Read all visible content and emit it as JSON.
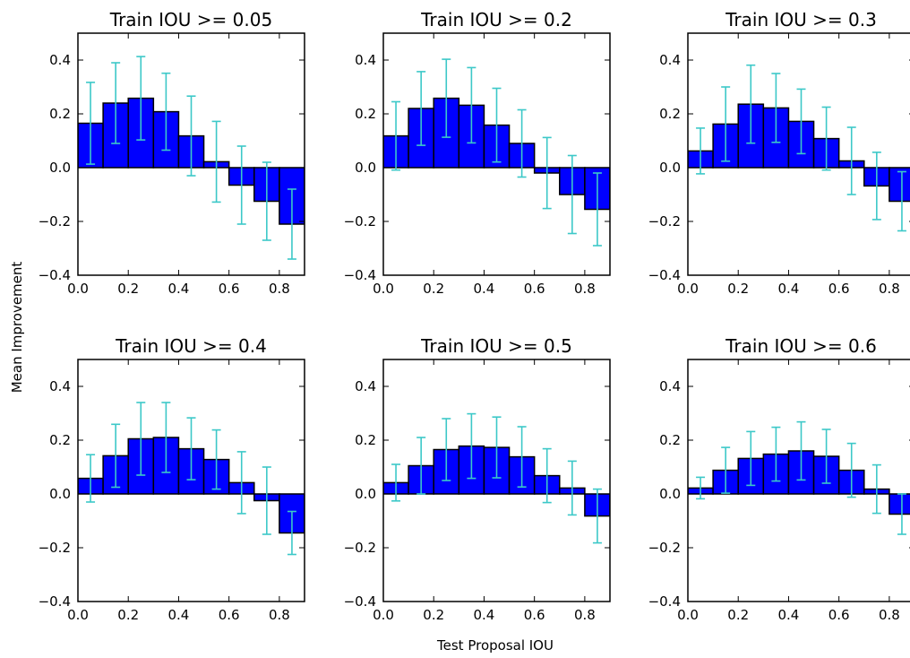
{
  "figure": {
    "ylabel": "Mean Improvement",
    "xlabel": "Test Proposal IOU"
  },
  "chart_data": [
    {
      "type": "bar",
      "title": "Train IOU >= 0.05",
      "x": [
        0.0,
        0.1,
        0.2,
        0.3,
        0.4,
        0.5,
        0.6,
        0.7,
        0.8
      ],
      "values": [
        0.165,
        0.24,
        0.258,
        0.208,
        0.118,
        0.022,
        -0.065,
        -0.125,
        -0.21
      ],
      "error": [
        0.152,
        0.15,
        0.155,
        0.143,
        0.148,
        0.15,
        0.145,
        0.145,
        0.13
      ],
      "xlim": [
        0,
        0.9
      ],
      "ylim": [
        -0.4,
        0.5
      ],
      "xticks": [
        "0.0",
        "0.2",
        "0.4",
        "0.6",
        "0.8"
      ],
      "yticks": [
        "−0.4",
        "−0.2",
        "0.0",
        "0.2",
        "0.4"
      ],
      "bar_color": "#0000ff",
      "error_color": "#3cc8c8"
    },
    {
      "type": "bar",
      "title": "Train IOU >= 0.2",
      "x": [
        0.0,
        0.1,
        0.2,
        0.3,
        0.4,
        0.5,
        0.6,
        0.7,
        0.8
      ],
      "values": [
        0.118,
        0.22,
        0.258,
        0.232,
        0.158,
        0.09,
        -0.02,
        -0.1,
        -0.155
      ],
      "error": [
        0.127,
        0.137,
        0.145,
        0.14,
        0.137,
        0.125,
        0.132,
        0.145,
        0.135
      ],
      "xlim": [
        0,
        0.9
      ],
      "ylim": [
        -0.4,
        0.5
      ],
      "xticks": [
        "0.0",
        "0.2",
        "0.4",
        "0.6",
        "0.8"
      ],
      "yticks": [
        "−0.4",
        "−0.2",
        "0.0",
        "0.2",
        "0.4"
      ],
      "bar_color": "#0000ff",
      "error_color": "#3cc8c8"
    },
    {
      "type": "bar",
      "title": "Train IOU >= 0.3",
      "x": [
        0.0,
        0.1,
        0.2,
        0.3,
        0.4,
        0.5,
        0.6,
        0.7,
        0.8
      ],
      "values": [
        0.062,
        0.162,
        0.236,
        0.222,
        0.172,
        0.108,
        0.025,
        -0.068,
        -0.125
      ],
      "error": [
        0.085,
        0.138,
        0.145,
        0.128,
        0.12,
        0.117,
        0.125,
        0.125,
        0.11
      ],
      "xlim": [
        0,
        0.9
      ],
      "ylim": [
        -0.4,
        0.5
      ],
      "xticks": [
        "0.0",
        "0.2",
        "0.4",
        "0.6",
        "0.8"
      ],
      "yticks": [
        "−0.4",
        "−0.2",
        "0.0",
        "0.2",
        "0.4"
      ],
      "bar_color": "#0000ff",
      "error_color": "#3cc8c8"
    },
    {
      "type": "bar",
      "title": "Train IOU >= 0.4",
      "x": [
        0.0,
        0.1,
        0.2,
        0.3,
        0.4,
        0.5,
        0.6,
        0.7,
        0.8
      ],
      "values": [
        0.058,
        0.142,
        0.205,
        0.21,
        0.168,
        0.128,
        0.042,
        -0.025,
        -0.145
      ],
      "error": [
        0.088,
        0.117,
        0.135,
        0.13,
        0.115,
        0.11,
        0.115,
        0.125,
        0.08
      ],
      "xlim": [
        0,
        0.9
      ],
      "ylim": [
        -0.4,
        0.5
      ],
      "xticks": [
        "0.0",
        "0.2",
        "0.4",
        "0.6",
        "0.8"
      ],
      "yticks": [
        "−0.4",
        "−0.2",
        "0.0",
        "0.2",
        "0.4"
      ],
      "bar_color": "#0000ff",
      "error_color": "#3cc8c8"
    },
    {
      "type": "bar",
      "title": "Train IOU >= 0.5",
      "x": [
        0.0,
        0.1,
        0.2,
        0.3,
        0.4,
        0.5,
        0.6,
        0.7,
        0.8
      ],
      "values": [
        0.042,
        0.105,
        0.165,
        0.178,
        0.173,
        0.138,
        0.068,
        0.022,
        -0.082
      ],
      "error": [
        0.068,
        0.105,
        0.115,
        0.12,
        0.113,
        0.112,
        0.1,
        0.1,
        0.1
      ],
      "xlim": [
        0,
        0.9
      ],
      "ylim": [
        -0.4,
        0.5
      ],
      "xticks": [
        "0.0",
        "0.2",
        "0.4",
        "0.6",
        "0.8"
      ],
      "yticks": [
        "−0.4",
        "−0.2",
        "0.0",
        "0.2",
        "0.4"
      ],
      "bar_color": "#0000ff",
      "error_color": "#3cc8c8"
    },
    {
      "type": "bar",
      "title": "Train IOU >= 0.6",
      "x": [
        0.0,
        0.1,
        0.2,
        0.3,
        0.4,
        0.5,
        0.6,
        0.7,
        0.8
      ],
      "values": [
        0.022,
        0.088,
        0.132,
        0.148,
        0.16,
        0.14,
        0.088,
        0.018,
        -0.075
      ],
      "error": [
        0.04,
        0.085,
        0.1,
        0.1,
        0.108,
        0.1,
        0.1,
        0.09,
        0.075
      ],
      "xlim": [
        0,
        0.9
      ],
      "ylim": [
        -0.4,
        0.5
      ],
      "xticks": [
        "0.0",
        "0.2",
        "0.4",
        "0.6",
        "0.8"
      ],
      "yticks": [
        "−0.4",
        "−0.2",
        "0.0",
        "0.2",
        "0.4"
      ],
      "bar_color": "#0000ff",
      "error_color": "#3cc8c8"
    }
  ]
}
